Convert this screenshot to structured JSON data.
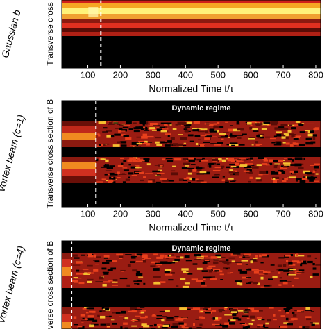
{
  "chart_data": [
    {
      "type": "heatmap",
      "side_label": "Gaussian b",
      "ylabel": "Transverse cross",
      "xlabel": "Normalized Time t/τ",
      "xlim": [
        20,
        815
      ],
      "xticks": [
        100,
        200,
        300,
        400,
        500,
        600,
        700,
        800
      ],
      "vline": 140
    },
    {
      "type": "heatmap",
      "annotation": "Dynamic regime",
      "side_label": "Vortex beam (c=1)",
      "ylabel": "Transverse cross section of B",
      "xlabel": "Normalized Time t/τ",
      "xlim": [
        20,
        815
      ],
      "xticks": [
        100,
        200,
        300,
        400,
        500,
        600,
        700,
        800
      ],
      "vline": 125
    },
    {
      "type": "heatmap",
      "annotation": "Dynamic regime",
      "side_label": "Vortex beam (c=4)",
      "ylabel": "verse cross section of B",
      "xlim": [
        20,
        815
      ],
      "vline": 50
    }
  ]
}
